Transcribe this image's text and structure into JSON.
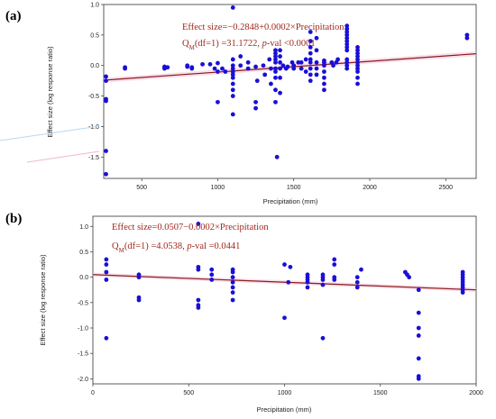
{
  "chart_data": [
    {
      "type": "scatter",
      "panel_label": "(a)",
      "xlabel": "Precipitation (mm)",
      "ylabel": "Effect size (log response ratio)",
      "xlim": [
        250,
        2700
      ],
      "ylim": [
        -1.85,
        1.0
      ],
      "xticks": [
        500,
        1000,
        1500,
        2000,
        2500
      ],
      "yticks": [
        1.0,
        0.5,
        0.0,
        -0.5,
        -1.0,
        -1.5
      ],
      "xtick_labels": [
        "500",
        "1000",
        "1500",
        "2000",
        "2500"
      ],
      "ytick_labels": [
        "1.0",
        "0.5",
        "0.0",
        "-0.5",
        "-1.0",
        "-1.5"
      ],
      "annotation_line1": "Effect  size=−0.2848+0.0002×Precipitation",
      "annotation_q": "Q",
      "annotation_sub": "M",
      "annotation_mid": "(df=1) =31.1722, ",
      "annotation_p": "p",
      "annotation_end": "-val <0.0001",
      "fit": {
        "intercept": -0.2848,
        "slope": 0.000177
      },
      "colors": {
        "points": "#1a0fd6",
        "fit_line": "#8b1a1a",
        "band": "#f2c6dc"
      },
      "points": [
        [
          265,
          -0.18
        ],
        [
          265,
          -0.25
        ],
        [
          265,
          -0.55
        ],
        [
          265,
          -0.58
        ],
        [
          265,
          -1.4
        ],
        [
          265,
          -1.78
        ],
        [
          390,
          -0.05
        ],
        [
          390,
          -0.03
        ],
        [
          650,
          -0.02
        ],
        [
          650,
          -0.05
        ],
        [
          670,
          -0.03
        ],
        [
          800,
          -0.02
        ],
        [
          800,
          0.0
        ],
        [
          830,
          -0.03
        ],
        [
          830,
          -0.05
        ],
        [
          900,
          0.02
        ],
        [
          950,
          0.02
        ],
        [
          980,
          -0.05
        ],
        [
          1000,
          -0.1
        ],
        [
          1000,
          -0.6
        ],
        [
          1000,
          0.04
        ],
        [
          1030,
          -0.05
        ],
        [
          1050,
          -0.1
        ],
        [
          1100,
          0.95
        ],
        [
          1100,
          0.1
        ],
        [
          1100,
          0.0
        ],
        [
          1100,
          -0.05
        ],
        [
          1100,
          -0.1
        ],
        [
          1100,
          -0.15
        ],
        [
          1100,
          -0.2
        ],
        [
          1100,
          -0.3
        ],
        [
          1100,
          -0.4
        ],
        [
          1100,
          -0.5
        ],
        [
          1100,
          -0.8
        ],
        [
          1150,
          0.15
        ],
        [
          1150,
          0.0
        ],
        [
          1200,
          0.05
        ],
        [
          1200,
          -0.05
        ],
        [
          1250,
          -0.02
        ],
        [
          1250,
          -0.6
        ],
        [
          1250,
          -0.7
        ],
        [
          1260,
          -0.25
        ],
        [
          1300,
          0.0
        ],
        [
          1310,
          -0.15
        ],
        [
          1340,
          0.1
        ],
        [
          1350,
          -0.3
        ],
        [
          1350,
          -0.05
        ],
        [
          1380,
          0.25
        ],
        [
          1380,
          0.2
        ],
        [
          1380,
          0.15
        ],
        [
          1380,
          0.1
        ],
        [
          1380,
          0.05
        ],
        [
          1380,
          -0.05
        ],
        [
          1380,
          -0.1
        ],
        [
          1380,
          -0.2
        ],
        [
          1380,
          -0.4
        ],
        [
          1380,
          -0.6
        ],
        [
          1390,
          -1.5
        ],
        [
          1410,
          0.25
        ],
        [
          1410,
          0.15
        ],
        [
          1410,
          0.05
        ],
        [
          1410,
          -0.05
        ],
        [
          1410,
          -0.2
        ],
        [
          1410,
          -0.45
        ],
        [
          1430,
          0.0
        ],
        [
          1450,
          -0.05
        ],
        [
          1460,
          -0.02
        ],
        [
          1490,
          0.05
        ],
        [
          1500,
          0.0
        ],
        [
          1500,
          -0.05
        ],
        [
          1530,
          0.05
        ],
        [
          1550,
          0.05
        ],
        [
          1550,
          -0.05
        ],
        [
          1580,
          0.1
        ],
        [
          1580,
          -0.1
        ],
        [
          1610,
          0.55
        ],
        [
          1610,
          0.4
        ],
        [
          1610,
          0.3
        ],
        [
          1610,
          0.2
        ],
        [
          1610,
          0.1
        ],
        [
          1610,
          0.05
        ],
        [
          1610,
          -0.05
        ],
        [
          1610,
          -0.15
        ],
        [
          1610,
          -0.25
        ],
        [
          1650,
          0.45
        ],
        [
          1650,
          0.25
        ],
        [
          1650,
          0.05
        ],
        [
          1650,
          -0.05
        ],
        [
          1650,
          -0.15
        ],
        [
          1700,
          0.08
        ],
        [
          1700,
          0.05
        ],
        [
          1700,
          0.0
        ],
        [
          1700,
          -0.1
        ],
        [
          1700,
          -0.2
        ],
        [
          1700,
          -0.3
        ],
        [
          1700,
          -0.4
        ],
        [
          1750,
          0.05
        ],
        [
          1760,
          0.0
        ],
        [
          1780,
          0.05
        ],
        [
          1790,
          0.1
        ],
        [
          1850,
          0.65
        ],
        [
          1850,
          0.6
        ],
        [
          1850,
          0.55
        ],
        [
          1850,
          0.5
        ],
        [
          1850,
          0.45
        ],
        [
          1850,
          0.4
        ],
        [
          1850,
          0.35
        ],
        [
          1850,
          0.3
        ],
        [
          1850,
          0.25
        ],
        [
          1850,
          0.1
        ],
        [
          1850,
          0.05
        ],
        [
          1850,
          0.0
        ],
        [
          1850,
          -0.05
        ],
        [
          1920,
          0.3
        ],
        [
          1920,
          0.25
        ],
        [
          1920,
          0.2
        ],
        [
          1920,
          0.15
        ],
        [
          1920,
          0.1
        ],
        [
          1920,
          0.05
        ],
        [
          1920,
          0.0
        ],
        [
          1920,
          -0.05
        ],
        [
          1920,
          -0.1
        ],
        [
          1920,
          -0.2
        ],
        [
          1920,
          -0.3
        ],
        [
          2640,
          0.5
        ],
        [
          2640,
          0.45
        ]
      ]
    },
    {
      "type": "scatter",
      "panel_label": "(b)",
      "xlabel": "Precipitation (mm)",
      "ylabel": "Effect size (log response ratio)",
      "xlim": [
        0,
        2000
      ],
      "ylim": [
        -2.1,
        1.2
      ],
      "xticks": [
        0,
        500,
        1000,
        1500,
        2000
      ],
      "yticks": [
        1.0,
        0.5,
        0.0,
        -0.5,
        -1.0,
        -1.5,
        -2.0
      ],
      "xtick_labels": [
        "0",
        "500",
        "1000",
        "1500",
        "2000"
      ],
      "ytick_labels": [
        "1.0",
        "0.5",
        "0.0",
        "-0.5",
        "-1.0",
        "-1.5",
        "-2.0"
      ],
      "annotation_line1": "Effect  size=0.0507−0.0002×Precipitation",
      "annotation_q": "Q",
      "annotation_sub": "M",
      "annotation_mid": "(df=1) =4.0538, ",
      "annotation_p": "p",
      "annotation_end": "-val =0.0441",
      "fit": {
        "intercept": 0.0507,
        "slope": -0.00015
      },
      "colors": {
        "points": "#1a0fd6",
        "fit_line": "#8b1a1a",
        "band": "#f2c6dc"
      },
      "points": [
        [
          70,
          0.35
        ],
        [
          70,
          0.25
        ],
        [
          70,
          0.1
        ],
        [
          70,
          -0.05
        ],
        [
          70,
          -1.2
        ],
        [
          240,
          0.05
        ],
        [
          240,
          0.0
        ],
        [
          240,
          -0.4
        ],
        [
          240,
          -0.45
        ],
        [
          550,
          1.05
        ],
        [
          550,
          0.2
        ],
        [
          550,
          0.15
        ],
        [
          550,
          -0.45
        ],
        [
          550,
          -0.55
        ],
        [
          550,
          -0.6
        ],
        [
          620,
          0.15
        ],
        [
          620,
          0.05
        ],
        [
          620,
          -0.05
        ],
        [
          730,
          0.15
        ],
        [
          730,
          0.1
        ],
        [
          730,
          0.0
        ],
        [
          730,
          -0.1
        ],
        [
          730,
          -0.2
        ],
        [
          730,
          -0.3
        ],
        [
          730,
          -0.45
        ],
        [
          1000,
          0.25
        ],
        [
          1000,
          -0.8
        ],
        [
          1020,
          -0.1
        ],
        [
          1030,
          0.2
        ],
        [
          1120,
          0.05
        ],
        [
          1120,
          0.0
        ],
        [
          1120,
          -0.05
        ],
        [
          1120,
          -0.1
        ],
        [
          1120,
          -0.2
        ],
        [
          1200,
          0.0
        ],
        [
          1200,
          0.05
        ],
        [
          1200,
          -0.05
        ],
        [
          1200,
          -0.15
        ],
        [
          1200,
          -1.2
        ],
        [
          1260,
          0.35
        ],
        [
          1260,
          0.25
        ],
        [
          1260,
          0.0
        ],
        [
          1260,
          -0.05
        ],
        [
          1380,
          0.0
        ],
        [
          1380,
          -0.1
        ],
        [
          1380,
          -0.2
        ],
        [
          1400,
          0.15
        ],
        [
          1630,
          0.1
        ],
        [
          1640,
          0.05
        ],
        [
          1650,
          0.0
        ],
        [
          1700,
          -0.25
        ],
        [
          1700,
          -0.7
        ],
        [
          1700,
          -1.0
        ],
        [
          1700,
          -1.15
        ],
        [
          1700,
          -1.6
        ],
        [
          1700,
          -1.95
        ],
        [
          1700,
          -2.0
        ],
        [
          1930,
          0.1
        ],
        [
          1930,
          0.05
        ],
        [
          1930,
          0.0
        ],
        [
          1930,
          -0.05
        ],
        [
          1930,
          -0.1
        ],
        [
          1930,
          -0.15
        ],
        [
          1930,
          -0.2
        ],
        [
          1930,
          -0.25
        ],
        [
          1930,
          -0.3
        ]
      ]
    }
  ]
}
